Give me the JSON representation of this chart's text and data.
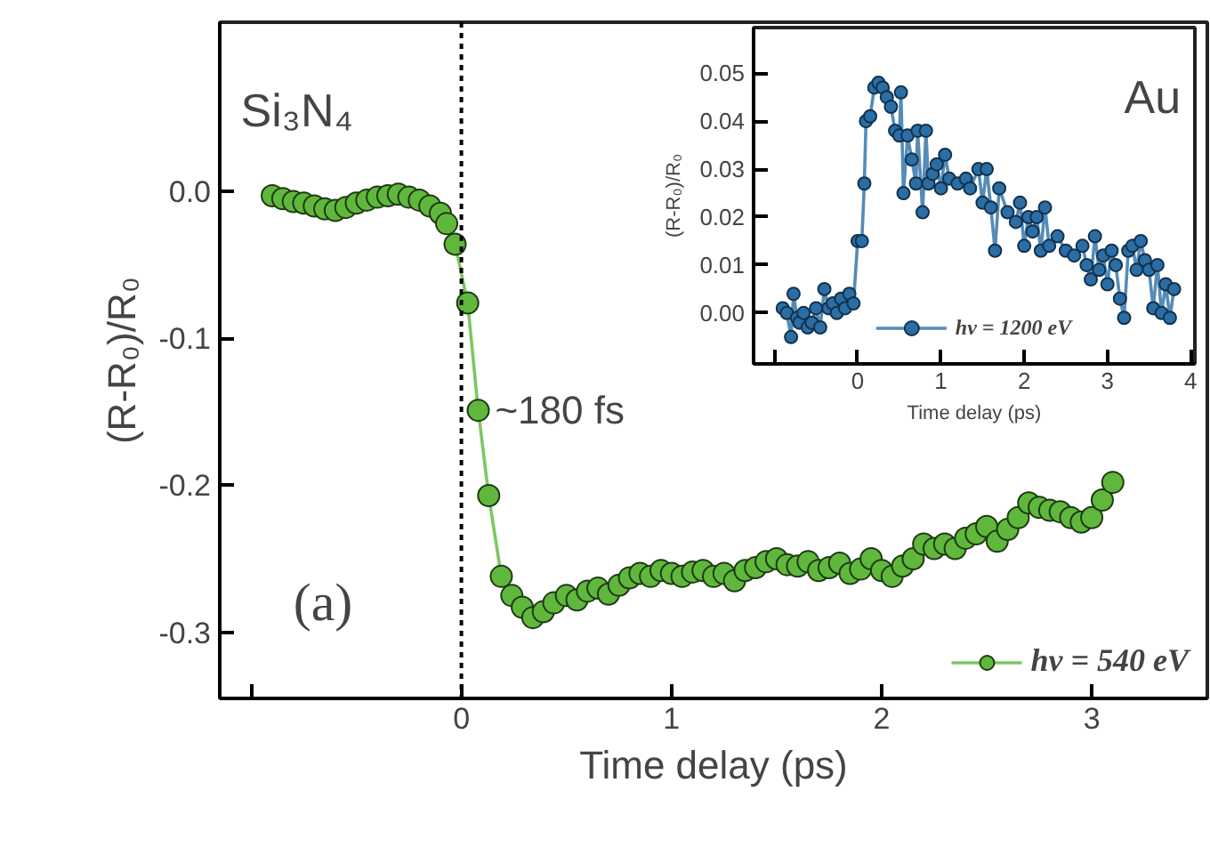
{
  "chart_data": [
    {
      "type": "line",
      "xlabel": "Time delay (ps)",
      "ylabel": "(R-R₀)/R₀",
      "annotations": [
        "Si₃N₄",
        {
          "text": "~180 fs",
          "x": 0.08,
          "y": -0.149
        },
        "(a)"
      ],
      "xlim": [
        -1.15,
        3.55
      ],
      "ylim": [
        -0.345,
        0.115
      ],
      "xticks": [
        {
          "value": -1,
          "label": null
        },
        0,
        1,
        2,
        3
      ],
      "yticks": [
        {
          "value": 0,
          "label": "0.0"
        },
        -0.1,
        -0.2,
        -0.3
      ],
      "ref_lines": [
        {
          "axis": "x",
          "value": 0,
          "label": null,
          "color": "#000000",
          "line_style": "dotted"
        }
      ],
      "marker": "circle",
      "legend": "bottom right",
      "grid": false,
      "series": [
        {
          "name": "hv = 540 eV",
          "color": "#5fb83c",
          "x": [
            -0.9,
            -0.85,
            -0.8,
            -0.75,
            -0.7,
            -0.65,
            -0.6,
            -0.55,
            -0.5,
            -0.45,
            -0.4,
            -0.35,
            -0.3,
            -0.25,
            -0.2,
            -0.15,
            -0.1,
            -0.07,
            -0.03,
            0.03,
            0.08,
            0.13,
            0.19,
            0.24,
            0.29,
            0.34,
            0.39,
            0.44,
            0.5,
            0.55,
            0.6,
            0.65,
            0.7,
            0.75,
            0.8,
            0.85,
            0.9,
            0.95,
            1.0,
            1.05,
            1.1,
            1.15,
            1.2,
            1.25,
            1.3,
            1.35,
            1.4,
            1.45,
            1.5,
            1.55,
            1.6,
            1.65,
            1.7,
            1.75,
            1.8,
            1.85,
            1.9,
            1.95,
            2.0,
            2.05,
            2.1,
            2.15,
            2.2,
            2.25,
            2.3,
            2.35,
            2.4,
            2.45,
            2.5,
            2.55,
            2.6,
            2.65,
            2.7,
            2.75,
            2.8,
            2.85,
            2.9,
            2.95,
            3.0,
            3.05,
            3.1
          ],
          "values": [
            -0.003,
            -0.005,
            -0.007,
            -0.008,
            -0.01,
            -0.012,
            -0.013,
            -0.011,
            -0.008,
            -0.006,
            -0.004,
            -0.003,
            -0.002,
            -0.004,
            -0.006,
            -0.01,
            -0.015,
            -0.022,
            -0.036,
            -0.076,
            -0.149,
            -0.207,
            -0.262,
            -0.275,
            -0.283,
            -0.29,
            -0.286,
            -0.28,
            -0.275,
            -0.278,
            -0.272,
            -0.27,
            -0.274,
            -0.268,
            -0.263,
            -0.26,
            -0.262,
            -0.258,
            -0.26,
            -0.262,
            -0.259,
            -0.258,
            -0.262,
            -0.26,
            -0.265,
            -0.258,
            -0.256,
            -0.252,
            -0.25,
            -0.254,
            -0.255,
            -0.252,
            -0.258,
            -0.256,
            -0.253,
            -0.26,
            -0.257,
            -0.25,
            -0.258,
            -0.262,
            -0.255,
            -0.25,
            -0.24,
            -0.243,
            -0.24,
            -0.243,
            -0.236,
            -0.233,
            -0.228,
            -0.238,
            -0.23,
            -0.222,
            -0.212,
            -0.215,
            -0.217,
            -0.218,
            -0.222,
            -0.225,
            -0.222,
            -0.21,
            -0.198
          ]
        }
      ]
    },
    {
      "type": "line",
      "xlabel": "Time delay (ps)",
      "ylabel": "(R-R₀)/R₀",
      "annotations": [
        "Au"
      ],
      "xlim": [
        -1.25,
        4.05
      ],
      "ylim": [
        -0.0106,
        0.0595
      ],
      "xticks": [
        {
          "value": -1,
          "label": null
        },
        0,
        1,
        2,
        3,
        4
      ],
      "yticks": [
        {
          "value": 0,
          "label": "0.00"
        },
        0.01,
        0.02,
        0.03,
        0.04,
        0.05
      ],
      "marker": "circle",
      "legend": "bottom",
      "grid": false,
      "series": [
        {
          "name": "hv = 1200 eV",
          "color": "#2b6ea6",
          "x": [
            -0.9,
            -0.85,
            -0.8,
            -0.77,
            -0.73,
            -0.7,
            -0.65,
            -0.6,
            -0.55,
            -0.5,
            -0.45,
            -0.4,
            -0.35,
            -0.3,
            -0.25,
            -0.2,
            -0.15,
            -0.1,
            -0.05,
            0.0,
            0.05,
            0.08,
            0.1,
            0.15,
            0.2,
            0.25,
            0.3,
            0.35,
            0.4,
            0.45,
            0.5,
            0.52,
            0.55,
            0.6,
            0.65,
            0.7,
            0.72,
            0.78,
            0.82,
            0.85,
            0.9,
            0.95,
            1.0,
            1.05,
            1.1,
            1.2,
            1.3,
            1.35,
            1.45,
            1.5,
            1.55,
            1.6,
            1.65,
            1.7,
            1.8,
            1.9,
            1.95,
            2.0,
            2.05,
            2.1,
            2.15,
            2.2,
            2.25,
            2.3,
            2.4,
            2.5,
            2.6,
            2.7,
            2.75,
            2.8,
            2.85,
            2.9,
            2.95,
            3.0,
            3.05,
            3.1,
            3.15,
            3.2,
            3.25,
            3.3,
            3.35,
            3.4,
            3.45,
            3.5,
            3.55,
            3.6,
            3.65,
            3.7,
            3.75,
            3.8
          ],
          "values": [
            0.001,
            0.0,
            -0.005,
            0.004,
            -0.001,
            -0.002,
            0.0,
            -0.003,
            -0.002,
            0.001,
            -0.003,
            0.005,
            0.001,
            0.002,
            0.0,
            0.003,
            0.001,
            0.004,
            0.002,
            0.015,
            0.015,
            0.027,
            0.04,
            0.041,
            0.047,
            0.048,
            0.047,
            0.045,
            0.043,
            0.038,
            0.037,
            0.046,
            0.025,
            0.037,
            0.032,
            0.027,
            0.038,
            0.021,
            0.038,
            0.027,
            0.029,
            0.031,
            0.026,
            0.033,
            0.028,
            0.027,
            0.028,
            0.026,
            0.03,
            0.023,
            0.03,
            0.022,
            0.013,
            0.026,
            0.021,
            0.019,
            0.023,
            0.014,
            0.02,
            0.017,
            0.02,
            0.013,
            0.022,
            0.014,
            0.016,
            0.013,
            0.012,
            0.014,
            0.01,
            0.007,
            0.016,
            0.009,
            0.012,
            0.006,
            0.013,
            0.01,
            0.003,
            -0.001,
            0.013,
            0.014,
            0.009,
            0.015,
            0.011,
            0.009,
            0.001,
            0.01,
            0.0,
            0.006,
            -0.001,
            0.005
          ]
        }
      ]
    }
  ]
}
